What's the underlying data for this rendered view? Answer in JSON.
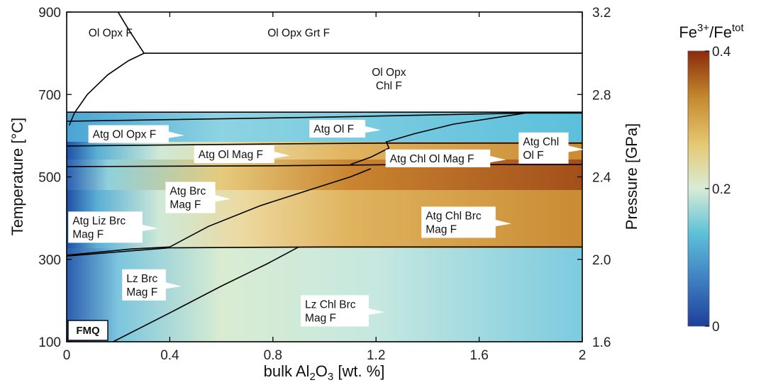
{
  "chart_data": {
    "type": "heatmap",
    "xlabel": {
      "base": "bulk Al",
      "sub1": "2",
      "mid": "O",
      "sub2": "3",
      "tail": " [wt. %]"
    },
    "ylabel_left": "Temperature [°C]",
    "ylabel_right": "Pressure [GPa]",
    "xlim": [
      0,
      2
    ],
    "ylim_left": [
      100,
      900
    ],
    "ylim_right": [
      1.6,
      3.2
    ],
    "x_ticks": [
      "0",
      "0.4",
      "0.8",
      "1.2",
      "1.6",
      "2"
    ],
    "x_tick_values": [
      0,
      0.4,
      0.8,
      1.2,
      1.6,
      2.0
    ],
    "y_left_ticks": [
      "100",
      "300",
      "500",
      "700",
      "900"
    ],
    "y_left_tick_values": [
      100,
      300,
      500,
      700,
      900
    ],
    "y_right_ticks": [
      "1.6",
      "2.0",
      "2.4",
      "2.8",
      "3.2"
    ],
    "y_right_tick_values": [
      1.6,
      2.0,
      2.4,
      2.8,
      3.2
    ],
    "colorbar": {
      "title_base": "Fe",
      "title_sup": "3+",
      "title_slash": "/Fe",
      "title_sup2": "tot",
      "range": [
        0,
        0.4
      ],
      "ticks": [
        "0",
        "0.2",
        "0.4"
      ],
      "tick_values": [
        0,
        0.2,
        0.4
      ],
      "colors": [
        "#1f3f9a",
        "#3f7fc2",
        "#5fc2d8",
        "#d8ecd6",
        "#e6c873",
        "#c48a2e",
        "#8c2a0c"
      ]
    },
    "badge": "FMQ",
    "boundaries": [
      {
        "name": "Ol Opx F / Ol Opx Grt F",
        "points": [
          [
            0.3,
            800
          ],
          [
            0.24,
            858
          ],
          [
            0.18,
            920
          ]
        ]
      },
      {
        "name": "Grt-in",
        "points": [
          [
            0.3,
            800
          ],
          [
            2.0,
            800
          ]
        ]
      },
      {
        "name": "Chl-in curve",
        "points": [
          [
            0.01,
            625
          ],
          [
            0.03,
            655
          ],
          [
            0.08,
            700
          ],
          [
            0.16,
            748
          ],
          [
            0.24,
            782
          ],
          [
            0.3,
            800
          ]
        ]
      },
      {
        "name": "Atg-out upper",
        "points": [
          [
            0.0,
            657
          ],
          [
            2.0,
            657
          ]
        ]
      },
      {
        "name": "Atg Ol Opx F top",
        "points": [
          [
            0.0,
            635
          ],
          [
            1.0,
            645
          ],
          [
            1.78,
            655
          ],
          [
            2.0,
            655
          ]
        ]
      },
      {
        "name": "Atg Ol F lower",
        "points": [
          [
            0.0,
            575
          ],
          [
            0.8,
            580
          ],
          [
            1.24,
            582
          ],
          [
            2.0,
            582
          ]
        ]
      },
      {
        "name": "Ol Mag lower",
        "points": [
          [
            0.0,
            525
          ],
          [
            0.8,
            527
          ],
          [
            1.3,
            530
          ],
          [
            2.0,
            530
          ]
        ]
      },
      {
        "name": "Chl-in loop",
        "points": [
          [
            1.78,
            655
          ],
          [
            1.5,
            628
          ],
          [
            1.35,
            605
          ],
          [
            1.24,
            585
          ],
          [
            1.25,
            570
          ],
          [
            1.18,
            548
          ],
          [
            1.1,
            530
          ]
        ]
      },
      {
        "name": "Brc-out",
        "points": [
          [
            0.0,
            308
          ],
          [
            0.4,
            328
          ],
          [
            1.0,
            330
          ],
          [
            2.0,
            330
          ]
        ]
      },
      {
        "name": "Liz-out",
        "points": [
          [
            0.0,
            310
          ],
          [
            0.25,
            325
          ],
          [
            0.4,
            330
          ]
        ]
      },
      {
        "name": "Chl-in diagonal mid",
        "points": [
          [
            0.4,
            330
          ],
          [
            0.55,
            380
          ],
          [
            0.75,
            430
          ],
          [
            0.95,
            470
          ],
          [
            1.1,
            500
          ],
          [
            1.18,
            520
          ]
        ]
      },
      {
        "name": "Chl-in diagonal low",
        "points": [
          [
            0.18,
            100
          ],
          [
            0.4,
            170
          ],
          [
            0.6,
            235
          ],
          [
            0.78,
            290
          ],
          [
            0.9,
            330
          ]
        ]
      }
    ],
    "labels": [
      {
        "lines": [
          "Ol Opx F"
        ],
        "x": 0.17,
        "y": 850
      },
      {
        "lines": [
          "Ol Opx Grt F"
        ],
        "x": 0.9,
        "y": 850
      },
      {
        "lines": [
          "Ol Opx",
          "Chl F"
        ],
        "x": 1.25,
        "y": 738
      },
      {
        "lines": [
          "Atg Ol Opx F"
        ],
        "x": 0.24,
        "y": 604,
        "box": true
      },
      {
        "lines": [
          "Atg Ol F"
        ],
        "x": 1.05,
        "y": 617,
        "box": true
      },
      {
        "lines": [
          "Atg Ol Mag F"
        ],
        "x": 0.65,
        "y": 555,
        "box": true
      },
      {
        "lines": [
          "Atg Chl",
          "Ol F"
        ],
        "x": 1.85,
        "y": 570,
        "box": true
      },
      {
        "lines": [
          "Atg Chl Ol Mag F"
        ],
        "x": 1.44,
        "y": 545,
        "box": true
      },
      {
        "lines": [
          "Atg Brc",
          "Mag F"
        ],
        "x": 0.48,
        "y": 450,
        "box": true
      },
      {
        "lines": [
          "Atg Chl Brc",
          "Mag F"
        ],
        "x": 1.52,
        "y": 390,
        "box": true
      },
      {
        "lines": [
          "Atg Liz Brc",
          "Mag F"
        ],
        "x": 0.15,
        "y": 378,
        "box": true
      },
      {
        "lines": [
          "Lz Brc",
          "Mag F"
        ],
        "x": 0.3,
        "y": 238,
        "box": true
      },
      {
        "lines": [
          "Lz Chl Brc",
          "Mag F"
        ],
        "x": 1.04,
        "y": 175,
        "box": true
      }
    ]
  }
}
